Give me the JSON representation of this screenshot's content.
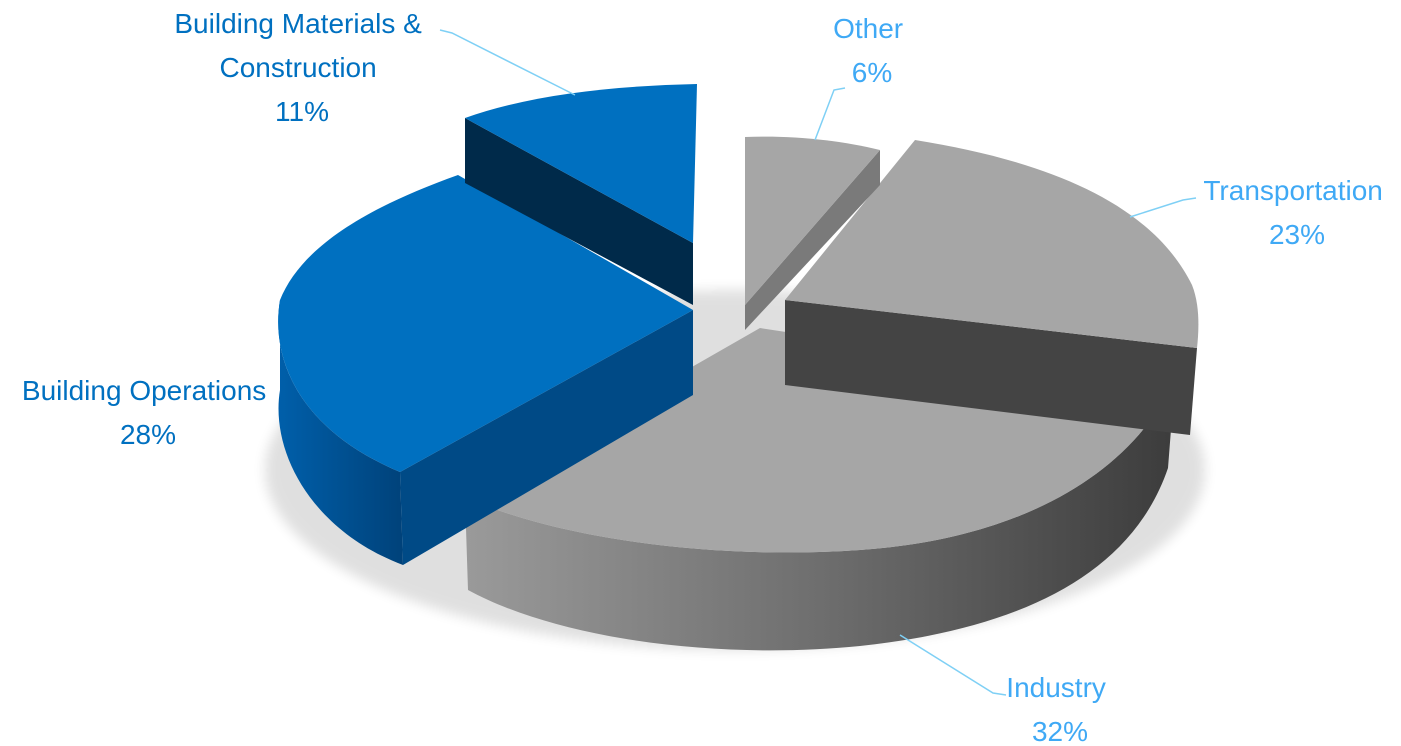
{
  "chart_data": {
    "type": "pie",
    "style": "3d-exploded",
    "title": "",
    "slices": [
      {
        "label_lines": [
          "Building Materials &",
          "Construction"
        ],
        "pct_label": "11%",
        "value": 11,
        "color": "#0070C0",
        "label_color": "#0070C0"
      },
      {
        "label_lines": [
          "Building Operations"
        ],
        "pct_label": "28%",
        "value": 28,
        "color": "#0070C0",
        "label_color": "#0070C0"
      },
      {
        "label_lines": [
          "Industry"
        ],
        "pct_label": "32%",
        "value": 32,
        "color": "#A6A6A6",
        "label_color": "#3FA9F5"
      },
      {
        "label_lines": [
          "Transportation"
        ],
        "pct_label": "23%",
        "value": 23,
        "color": "#A6A6A6",
        "label_color": "#3FA9F5"
      },
      {
        "label_lines": [
          "Other"
        ],
        "pct_label": "6%",
        "value": 6,
        "color": "#A6A6A6",
        "label_color": "#3FA9F5"
      }
    ],
    "leader_line_color": "#7FD0F5"
  }
}
